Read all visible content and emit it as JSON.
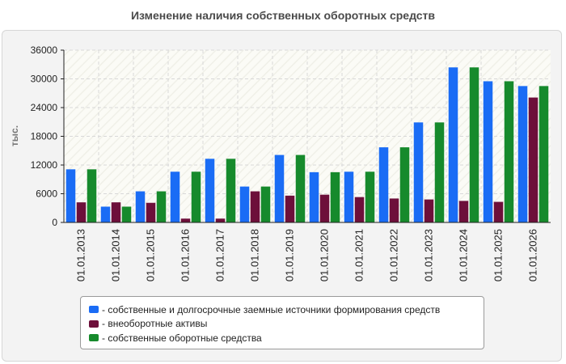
{
  "chart_data": {
    "type": "bar",
    "title": "Изменение наличия собственных оборотных средств",
    "ylabel": "тыс.",
    "xlabel": "",
    "ylim": [
      0,
      36000
    ],
    "yticks": [
      "0",
      "6000",
      "12000",
      "18000",
      "24000",
      "30000",
      "36000"
    ],
    "grid": true,
    "legend_position": "bottom",
    "categories": [
      "01.01.2013",
      "01.01.2014",
      "01.01.2015",
      "01.01.2016",
      "01.01.2017",
      "01.01.2018",
      "01.01.2019",
      "01.01.2020",
      "01.01.2021",
      "01.01.2022",
      "01.01.2023",
      "01.01.2024",
      "01.01.2025",
      "01.01.2026"
    ],
    "series": [
      {
        "name": "- собственные и долгосрочные заемные источники формирования средств",
        "color": "#1a6cf5",
        "values": [
          11100,
          3300,
          6500,
          10600,
          13300,
          7500,
          14100,
          10500,
          10600,
          15700,
          20900,
          32400,
          29500,
          28500
        ]
      },
      {
        "name": "- внеоборотные активы",
        "color": "#6d0f3a",
        "values": [
          4200,
          4200,
          4100,
          800,
          800,
          6500,
          5600,
          5800,
          5300,
          5000,
          4800,
          4500,
          4300,
          26100
        ]
      },
      {
        "name": "- собственные оборотные средства",
        "color": "#168a2c",
        "values": [
          11100,
          3300,
          6500,
          10600,
          13300,
          7500,
          14100,
          10500,
          10600,
          15700,
          20900,
          32400,
          29500,
          28500
        ]
      }
    ]
  }
}
